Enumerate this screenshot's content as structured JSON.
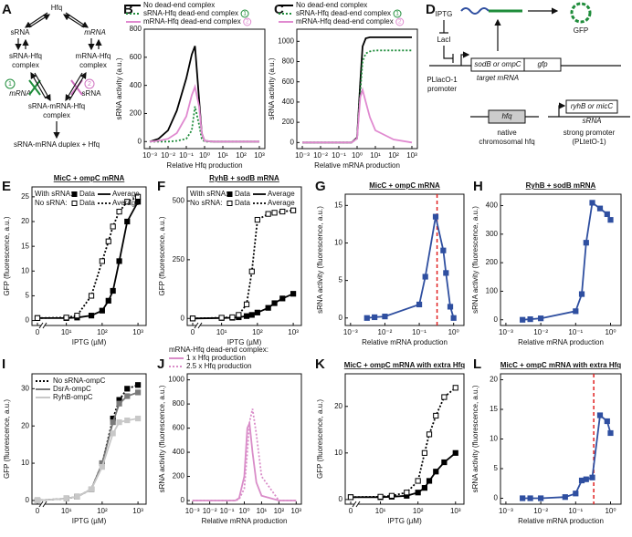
{
  "panel_labels": {
    "A": "A",
    "D": "D"
  },
  "diagram_a": {
    "hfq": "Hfq",
    "srna": "sRNA",
    "mrna": "mRNA",
    "srna_hfq": [
      "sRNA-Hfq",
      "complex"
    ],
    "mrna_hfq": [
      "mRNA-Hfq",
      "complex"
    ],
    "badge1": "1",
    "badge2": "2",
    "mrna_blocked": "mRNA",
    "srna_blocked": "sRNA",
    "ternary": [
      "sRNA-mRNA-Hfq",
      "complex"
    ],
    "product": "sRNA-mRNA duplex + Hfq"
  },
  "diagram_d": {
    "iptg": "IPTG",
    "laci": "LacI",
    "promoter": [
      "PLlacO-1",
      "promoter"
    ],
    "target_gene": "sodB or ompC",
    "gfp_gene": "gfp",
    "target_mrna": "target mRNA",
    "gfp": "GFP",
    "hfq_gene": "hfq",
    "native": [
      "native",
      "chromosomal hfq"
    ],
    "srna_gene": "ryhB or micC",
    "srna": "sRNA",
    "strong": [
      "strong promoter",
      "(PLtetO-1)"
    ]
  },
  "chart_data": [
    {
      "type": "line",
      "label": "B",
      "xscale": "log",
      "xlabel": "Relative Hfq production",
      "ylabel": "sRNA activity (a.u.)",
      "legend_position": "top",
      "xlim": [
        0.0005,
        2000
      ],
      "ylim": [
        -50,
        800
      ],
      "xticks": [
        {
          "value": 0.001,
          "label": "10⁻³"
        },
        {
          "value": 0.01,
          "label": "10⁻²"
        },
        {
          "value": 0.1,
          "label": "10⁻¹"
        },
        {
          "value": 1,
          "label": "10⁰"
        },
        {
          "value": 10,
          "label": "10¹"
        },
        {
          "value": 100,
          "label": "10²"
        },
        {
          "value": 1000,
          "label": "10³"
        }
      ],
      "yticks": [
        0,
        200,
        400,
        600,
        800
      ],
      "x": [
        0.001,
        0.003,
        0.01,
        0.03,
        0.1,
        0.2,
        0.3,
        0.5,
        0.7,
        1,
        3,
        10,
        100,
        1000
      ],
      "series": [
        {
          "name": "No dead-end complex",
          "color": "#000000",
          "values": [
            0,
            20,
            80,
            220,
            450,
            620,
            680,
            300,
            60,
            5,
            0,
            0,
            0,
            0
          ]
        },
        {
          "name": "sRNA-Hfq dead-end complex",
          "badge": "1",
          "color": "#1e8c3a",
          "dash": true,
          "values": [
            0,
            0,
            0,
            5,
            20,
            80,
            250,
            120,
            20,
            0,
            0,
            0,
            0,
            0
          ]
        },
        {
          "name": "mRNA-Hfq dead-end complex",
          "badge": "2",
          "color": "#e08ad0",
          "values": [
            0,
            5,
            20,
            60,
            180,
            330,
            390,
            250,
            60,
            5,
            0,
            0,
            0,
            0
          ]
        }
      ]
    },
    {
      "type": "line",
      "label": "C",
      "xscale": "log",
      "xlabel": "Relative mRNA production",
      "ylabel": "sRNA activity (a.u.)",
      "legend_position": "top",
      "xlim": [
        0.0005,
        2000
      ],
      "ylim": [
        -60,
        1120
      ],
      "xticks": [
        {
          "value": 0.001,
          "label": "10⁻³"
        },
        {
          "value": 0.01,
          "label": "10⁻²"
        },
        {
          "value": 0.1,
          "label": "10⁻¹"
        },
        {
          "value": 1,
          "label": "10⁰"
        },
        {
          "value": 10,
          "label": "10¹"
        },
        {
          "value": 100,
          "label": "10²"
        },
        {
          "value": 1000,
          "label": "10³"
        }
      ],
      "yticks": [
        0,
        200,
        400,
        600,
        800,
        1000
      ],
      "x": [
        0.001,
        0.01,
        0.1,
        0.5,
        1,
        1.5,
        2,
        3,
        5,
        10,
        100,
        1000
      ],
      "series": [
        {
          "name": "No dead-end complex",
          "color": "#000000",
          "values": [
            0,
            0,
            0,
            0,
            50,
            600,
            950,
            1030,
            1040,
            1040,
            1040,
            1040
          ]
        },
        {
          "name": "sRNA-Hfq dead-end complex",
          "badge": "1",
          "color": "#1e8c3a",
          "dash": true,
          "values": [
            0,
            0,
            0,
            0,
            40,
            500,
            800,
            880,
            900,
            910,
            910,
            910
          ]
        },
        {
          "name": "mRNA-Hfq dead-end complex",
          "badge": "2",
          "color": "#e08ad0",
          "values": [
            0,
            0,
            0,
            0,
            40,
            450,
            520,
            400,
            250,
            120,
            30,
            0
          ]
        }
      ]
    },
    {
      "type": "line",
      "label": "E",
      "title": "MicC + ompC mRNA",
      "xscale": "log",
      "x_zero_break": true,
      "xlabel": "IPTG (µM)",
      "ylabel": "GFP (fluorescence, a.u.)",
      "legend": {
        "rows": [
          "With sRNA:",
          "No sRNA:"
        ],
        "entries": [
          "Data",
          "Average"
        ]
      },
      "xlim": [
        0,
        1500
      ],
      "ylim": [
        -1,
        27
      ],
      "xticks": [
        0,
        {
          "value": 10,
          "label": "10¹"
        },
        {
          "value": 100,
          "label": "10²"
        },
        {
          "value": 1000,
          "label": "10³"
        }
      ],
      "yticks": [
        0,
        5,
        10,
        15,
        20,
        25
      ],
      "x": [
        0,
        10,
        20,
        50,
        100,
        150,
        200,
        300,
        500,
        1000
      ],
      "series": [
        {
          "color": "#000000",
          "marker": "square",
          "values": [
            0.5,
            0.5,
            0.6,
            1,
            2,
            4,
            6,
            12,
            20,
            24
          ]
        },
        {
          "color": "#000000",
          "marker": "square-open",
          "dash": true,
          "values": [
            0.5,
            0.6,
            1,
            5,
            12,
            16,
            19,
            22,
            24,
            25
          ]
        }
      ]
    },
    {
      "type": "line",
      "label": "F",
      "title": "RyhB + sodB mRNA",
      "xscale": "log",
      "x_zero_break": true,
      "xlabel": "IPTG (µM)",
      "ylabel": "GFP (fluorescence, a.u.)",
      "legend": {
        "rows": [
          "With sRNA:",
          "No sRNA:"
        ],
        "entries": [
          "Data",
          "Average"
        ]
      },
      "xlim": [
        0,
        1500
      ],
      "ylim": [
        -30,
        560
      ],
      "xticks": [
        0,
        {
          "value": 10,
          "label": "10¹"
        },
        {
          "value": 100,
          "label": "10²"
        },
        {
          "value": 1000,
          "label": "10³"
        }
      ],
      "yticks": [
        0,
        250,
        500
      ],
      "x": [
        0,
        10,
        20,
        30,
        50,
        70,
        100,
        200,
        300,
        500,
        1000
      ],
      "series": [
        {
          "color": "#000000",
          "marker": "square",
          "values": [
            0,
            2,
            3,
            5,
            10,
            15,
            25,
            45,
            65,
            85,
            105
          ]
        },
        {
          "color": "#000000",
          "marker": "square-open",
          "dash": true,
          "values": [
            0,
            3,
            5,
            15,
            60,
            200,
            420,
            445,
            450,
            455,
            460
          ]
        }
      ]
    },
    {
      "type": "line",
      "label": "G",
      "title": "MicC + ompC mRNA",
      "xscale": "log",
      "xlabel": "Relative mRNA production",
      "ylabel": "sRNA activity (fluorescence, a.u.)",
      "xlim": [
        0.0007,
        2
      ],
      "ylim": [
        -1,
        16.5
      ],
      "xticks": [
        {
          "value": 0.001,
          "label": "10⁻³"
        },
        {
          "value": 0.01,
          "label": "10⁻²"
        },
        {
          "value": 0.1,
          "label": "10⁻¹"
        },
        {
          "value": 1,
          "label": "10⁰"
        }
      ],
      "yticks": [
        0,
        5,
        10,
        15
      ],
      "ref_x": 0.33,
      "ref_color": "#e02020",
      "x": [
        0.003,
        0.005,
        0.01,
        0.1,
        0.15,
        0.3,
        0.5,
        0.6,
        0.8,
        1
      ],
      "values": [
        0,
        0.1,
        0.2,
        1.8,
        5.5,
        13.5,
        9,
        6,
        1.5,
        0
      ],
      "color": "#2f4fa0",
      "marker": "square"
    },
    {
      "type": "line",
      "label": "H",
      "title": "RyhB + sodB mRNA",
      "xscale": "log",
      "xlabel": "Relative mRNA production",
      "ylabel": "sRNA activity (fluorescence, a.u.)",
      "xlim": [
        0.0007,
        2
      ],
      "ylim": [
        -20,
        440
      ],
      "xticks": [
        {
          "value": 0.001,
          "label": "10⁻³"
        },
        {
          "value": 0.01,
          "label": "10⁻²"
        },
        {
          "value": 0.1,
          "label": "10⁻¹"
        },
        {
          "value": 1,
          "label": "10⁰"
        }
      ],
      "yticks": [
        0,
        100,
        200,
        300,
        400
      ],
      "x": [
        0.003,
        0.005,
        0.01,
        0.1,
        0.15,
        0.2,
        0.3,
        0.5,
        0.8,
        1
      ],
      "values": [
        0,
        2,
        5,
        30,
        90,
        270,
        410,
        390,
        370,
        350
      ],
      "color": "#2f4fa0",
      "marker": "square"
    },
    {
      "type": "line",
      "label": "I",
      "xscale": "log",
      "x_zero_break": true,
      "xlabel": "IPTG (µM)",
      "ylabel": "GFP (fluorescence, a.u.)",
      "legend_position": "top-left",
      "xlim": [
        0,
        1500
      ],
      "ylim": [
        -1,
        34
      ],
      "xticks": [
        0,
        {
          "value": 10,
          "label": "10¹"
        },
        {
          "value": 100,
          "label": "10²"
        },
        {
          "value": 1000,
          "label": "10³"
        }
      ],
      "yticks": [
        0,
        10,
        20,
        30
      ],
      "x": [
        0,
        10,
        20,
        50,
        100,
        200,
        300,
        500,
        1000
      ],
      "series": [
        {
          "name": "No sRNA-ompC",
          "color": "#000000",
          "dash": true,
          "marker": "square",
          "values": [
            0,
            0.5,
            1,
            3,
            10,
            22,
            27,
            30,
            31
          ]
        },
        {
          "name": "DsrA-ompC",
          "color": "#7a7a7a",
          "marker": "square",
          "values": [
            0,
            0.5,
            1,
            3,
            10,
            21,
            26,
            28,
            29
          ]
        },
        {
          "name": "RyhB-ompC",
          "color": "#c8c8c8",
          "marker": "square",
          "values": [
            0,
            0.5,
            1,
            3,
            9,
            18,
            21,
            21.5,
            22
          ]
        }
      ]
    },
    {
      "type": "line",
      "label": "J",
      "xscale": "log",
      "xlabel": "Relative mRNA production",
      "ylabel": "sRNA activity (fluorescence, a.u.)",
      "legend_position": "top",
      "legend_title": "mRNA-Hfq dead-end complex:",
      "xlim": [
        0.0005,
        2000
      ],
      "ylim": [
        -30,
        1050
      ],
      "xticks": [
        {
          "value": 0.001,
          "label": "10⁻³"
        },
        {
          "value": 0.01,
          "label": "10⁻²"
        },
        {
          "value": 0.1,
          "label": "10⁻¹"
        },
        {
          "value": 1,
          "label": "10⁰"
        },
        {
          "value": 10,
          "label": "10¹"
        },
        {
          "value": 100,
          "label": "10²"
        },
        {
          "value": 1000,
          "label": "10³"
        }
      ],
      "yticks": [
        0,
        200,
        400,
        600,
        800,
        1000
      ],
      "x": [
        0.001,
        0.01,
        0.1,
        0.3,
        0.5,
        1,
        1.5,
        2,
        3,
        5,
        10,
        100,
        1000
      ],
      "series": [
        {
          "name": "1 x Hfq production",
          "color": "#d98cc8",
          "values": [
            0,
            0,
            0,
            0,
            20,
            200,
            600,
            640,
            400,
            150,
            40,
            0,
            0
          ]
        },
        {
          "name": "2.5 x Hfq production",
          "color": "#d98cc8",
          "dash": true,
          "values": [
            0,
            0,
            0,
            0,
            10,
            100,
            400,
            650,
            760,
            550,
            200,
            0,
            0
          ]
        }
      ]
    },
    {
      "type": "line",
      "label": "K",
      "title": "MicC + ompC mRNA with extra Hfq",
      "xscale": "log",
      "x_zero_break": true,
      "xlabel": "IPTG (µM)",
      "ylabel": "GFP (fluorescence, a.u.)",
      "xlim": [
        0,
        1500
      ],
      "ylim": [
        -1,
        27
      ],
      "xticks": [
        0,
        {
          "value": 10,
          "label": "10¹"
        },
        {
          "value": 100,
          "label": "10²"
        },
        {
          "value": 1000,
          "label": "10³"
        }
      ],
      "yticks": [
        0,
        10,
        20
      ],
      "x": [
        0,
        10,
        20,
        50,
        100,
        150,
        200,
        300,
        500,
        1000
      ],
      "series": [
        {
          "color": "#000000",
          "marker": "square",
          "values": [
            0.5,
            0.5,
            0.6,
            0.8,
            1.5,
            2.5,
            4,
            6,
            8,
            10
          ]
        },
        {
          "color": "#000000",
          "marker": "square-open",
          "dash": true,
          "values": [
            0.5,
            0.6,
            0.8,
            1.5,
            4,
            10,
            14,
            18,
            22,
            24
          ]
        }
      ]
    },
    {
      "type": "line",
      "label": "L",
      "title": "MicC + ompC mRNA with extra Hfq",
      "xscale": "log",
      "xlabel": "Relative mRNA production",
      "ylabel": "sRNA activity (fluorescence, a.u.)",
      "xlim": [
        0.0007,
        2
      ],
      "ylim": [
        -1,
        21
      ],
      "xticks": [
        {
          "value": 0.001,
          "label": "10⁻³"
        },
        {
          "value": 0.01,
          "label": "10⁻²"
        },
        {
          "value": 0.1,
          "label": "10⁻¹"
        },
        {
          "value": 1,
          "label": "10⁰"
        }
      ],
      "yticks": [
        0,
        5,
        10,
        15,
        20
      ],
      "ref_x": 0.33,
      "ref_color": "#e02020",
      "x": [
        0.003,
        0.005,
        0.01,
        0.05,
        0.1,
        0.15,
        0.2,
        0.3,
        0.5,
        0.8,
        1
      ],
      "values": [
        0,
        0,
        0,
        0.2,
        0.8,
        3,
        3.2,
        3.5,
        14,
        13,
        11
      ],
      "color": "#2f4fa0",
      "marker": "square"
    }
  ]
}
